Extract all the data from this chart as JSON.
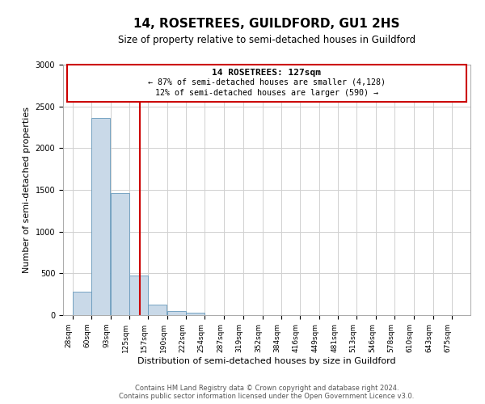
{
  "title": "14, ROSETREES, GUILDFORD, GU1 2HS",
  "subtitle": "Size of property relative to semi-detached houses in Guildford",
  "xlabel": "Distribution of semi-detached houses by size in Guildford",
  "ylabel": "Number of semi-detached properties",
  "annotation_title": "14 ROSETREES: 127sqm",
  "annotation_line1": "← 87% of semi-detached houses are smaller (4,128)",
  "annotation_line2": "12% of semi-detached houses are larger (590) →",
  "footer_line1": "Contains HM Land Registry data © Crown copyright and database right 2024.",
  "footer_line2": "Contains public sector information licensed under the Open Government Licence v3.0.",
  "property_size": 127,
  "bin_labels": [
    "28sqm",
    "60sqm",
    "93sqm",
    "125sqm",
    "157sqm",
    "190sqm",
    "222sqm",
    "254sqm",
    "287sqm",
    "319sqm",
    "352sqm",
    "384sqm",
    "416sqm",
    "449sqm",
    "481sqm",
    "513sqm",
    "546sqm",
    "578sqm",
    "610sqm",
    "643sqm",
    "675sqm"
  ],
  "label_vals": [
    28,
    60,
    93,
    125,
    157,
    190,
    222,
    254,
    287,
    319,
    352,
    384,
    416,
    449,
    481,
    513,
    546,
    578,
    610,
    643,
    675
  ],
  "bar_values": [
    285,
    2360,
    1465,
    470,
    130,
    50,
    30,
    0,
    0,
    0,
    0,
    0,
    0,
    0,
    0,
    0,
    0,
    0,
    0,
    0,
    0
  ],
  "ylim": [
    0,
    3000
  ],
  "yticks": [
    0,
    500,
    1000,
    1500,
    2000,
    2500,
    3000
  ],
  "bar_color": "#c9d9e8",
  "bar_edge_color": "#6699bb",
  "vline_color": "#cc0000",
  "box_color": "#cc0000",
  "background_color": "#ffffff",
  "grid_color": "#d0d0d0",
  "title_fontsize": 11,
  "subtitle_fontsize": 8.5,
  "xlabel_fontsize": 8,
  "ylabel_fontsize": 8,
  "tick_fontsize": 6.5,
  "footer_fontsize": 6
}
